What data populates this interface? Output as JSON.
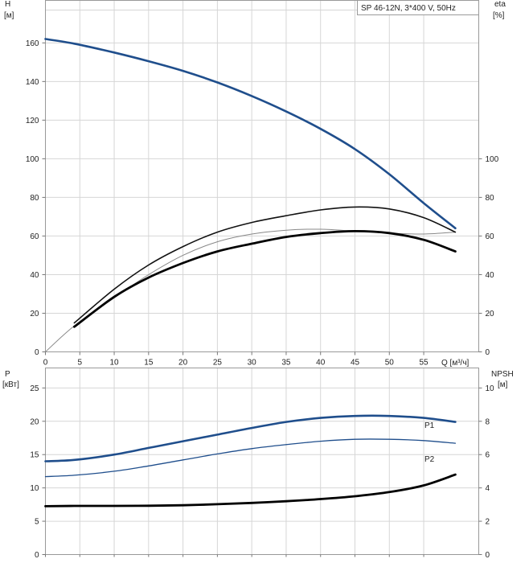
{
  "chart_data": [
    {
      "type": "line",
      "title": "SP 46-12N, 3*400 V, 50Hz",
      "xlabel": "Q [м³/ч]",
      "ylabel": "H [м]",
      "ylabel_unit_line1": "H",
      "ylabel_unit_line2": "[м]",
      "y2label_line1": "eta",
      "y2label_line2": "[%]",
      "xlim": [
        0,
        63
      ],
      "ylim": [
        0,
        182
      ],
      "y2lim": [
        0,
        182
      ],
      "xticks": [
        0,
        5,
        10,
        15,
        20,
        25,
        30,
        35,
        40,
        45,
        50,
        55
      ],
      "yticks": [
        0,
        20,
        40,
        60,
        80,
        100,
        120,
        140,
        160
      ],
      "y2ticks": [
        0,
        20,
        40,
        60,
        80,
        100
      ],
      "grid": true,
      "series": [
        {
          "name": "",
          "color": "#1f4e8c",
          "x": [
            0,
            4.2,
            10,
            15,
            20,
            25,
            30,
            35,
            40,
            45,
            50,
            55,
            59.6
          ],
          "y": [
            162,
            159.6,
            155,
            150.5,
            145.5,
            139.5,
            132.5,
            124.5,
            115.5,
            105,
            92,
            77,
            64
          ]
        },
        {
          "name": "",
          "color": "#888888",
          "x": [
            0,
            4.2,
            10,
            15,
            20,
            25,
            30,
            35,
            40,
            45,
            50,
            55,
            59.6
          ],
          "y": [
            0,
            13.5,
            28,
            40,
            50,
            57,
            61,
            63,
            63.5,
            62.5,
            61.5,
            61,
            62
          ]
        },
        {
          "name": "",
          "color": "#111111",
          "x": [
            4.2,
            10,
            15,
            20,
            25,
            30,
            35,
            40,
            45,
            50,
            55,
            59.6
          ],
          "y": [
            15,
            32.5,
            45,
            54.5,
            62,
            67,
            70.5,
            73.5,
            75,
            74,
            69.5,
            62
          ]
        },
        {
          "name": "",
          "color": "#000000",
          "x": [
            4.2,
            10,
            15,
            20,
            25,
            30,
            35,
            40,
            45,
            50,
            55,
            59.6
          ],
          "y": [
            13,
            28.5,
            38.5,
            46,
            52,
            56,
            59.5,
            61.5,
            62.5,
            61.5,
            58,
            52
          ]
        }
      ]
    },
    {
      "type": "line",
      "title": "",
      "xlabel": "",
      "ylabel_line1": "P",
      "ylabel_line2": "[кВт]",
      "y2label_line1": "NPSH",
      "y2label_line2": "[м]",
      "xlim": [
        0,
        63
      ],
      "ylim": [
        0,
        28
      ],
      "y2lim": [
        0,
        11.2
      ],
      "yticks": [
        0,
        5,
        10,
        15,
        20,
        25
      ],
      "y2ticks": [
        0,
        2,
        4,
        6,
        8,
        10
      ],
      "grid": true,
      "series": [
        {
          "name": "P1",
          "color": "#1f4e8c",
          "x": [
            0,
            4.2,
            10,
            15,
            20,
            25,
            30,
            35,
            40,
            45,
            50,
            55,
            59.6
          ],
          "y": [
            14,
            14.2,
            15,
            16,
            17,
            18,
            19,
            19.9,
            20.5,
            20.8,
            20.8,
            20.5,
            19.9
          ]
        },
        {
          "name": "P2",
          "color": "#1f4e8c",
          "x": [
            0,
            4.2,
            10,
            15,
            20,
            25,
            30,
            35,
            40,
            45,
            50,
            55,
            59.6
          ],
          "y": [
            11.7,
            11.9,
            12.5,
            13.3,
            14.2,
            15.1,
            15.9,
            16.5,
            17,
            17.3,
            17.3,
            17.1,
            16.7
          ]
        },
        {
          "name": "",
          "axis": "y2",
          "color": "#000000",
          "x": [
            0,
            4.2,
            10,
            15,
            20,
            25,
            30,
            35,
            40,
            45,
            50,
            55,
            59.6
          ],
          "y": [
            2.9,
            2.92,
            2.92,
            2.93,
            2.96,
            3.02,
            3.1,
            3.2,
            3.33,
            3.5,
            3.75,
            4.15,
            4.8
          ]
        }
      ]
    }
  ]
}
